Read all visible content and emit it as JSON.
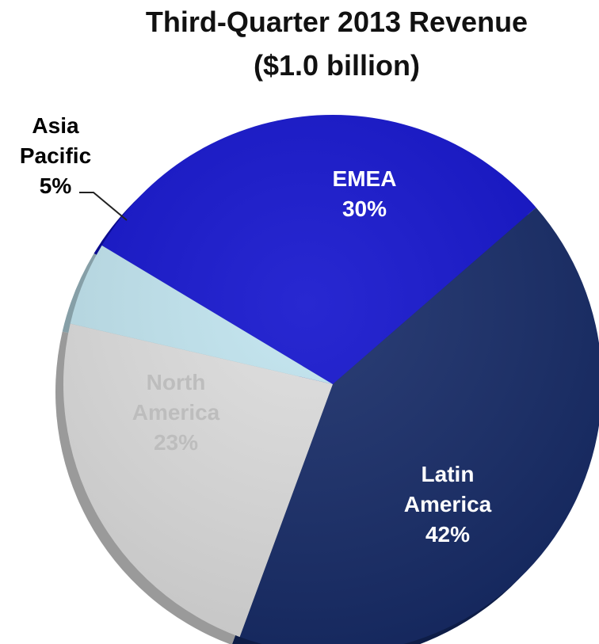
{
  "chart_data": {
    "type": "pie",
    "title": "Third-Quarter 2013 Revenue",
    "subtitle": "($1.0 billion)",
    "slices": [
      {
        "label_lines": [
          "EMEA"
        ],
        "value": 30,
        "value_label": "30%",
        "color": "#1010CC",
        "label_color": "#FFFFFF"
      },
      {
        "label_lines": [
          "Latin",
          "America"
        ],
        "value": 42,
        "value_label": "42%",
        "color": "#142966",
        "label_color": "#FFFFFF"
      },
      {
        "label_lines": [
          "North",
          "America"
        ],
        "value": 23,
        "value_label": "23%",
        "color": "#DCDCDC",
        "label_color": "#BDBDBD"
      },
      {
        "label_lines": [
          "Asia",
          "Pacific"
        ],
        "value": 5,
        "value_label": "5%",
        "color": "#BFE3EE",
        "label_color": "#000000"
      }
    ],
    "legend": "none"
  }
}
